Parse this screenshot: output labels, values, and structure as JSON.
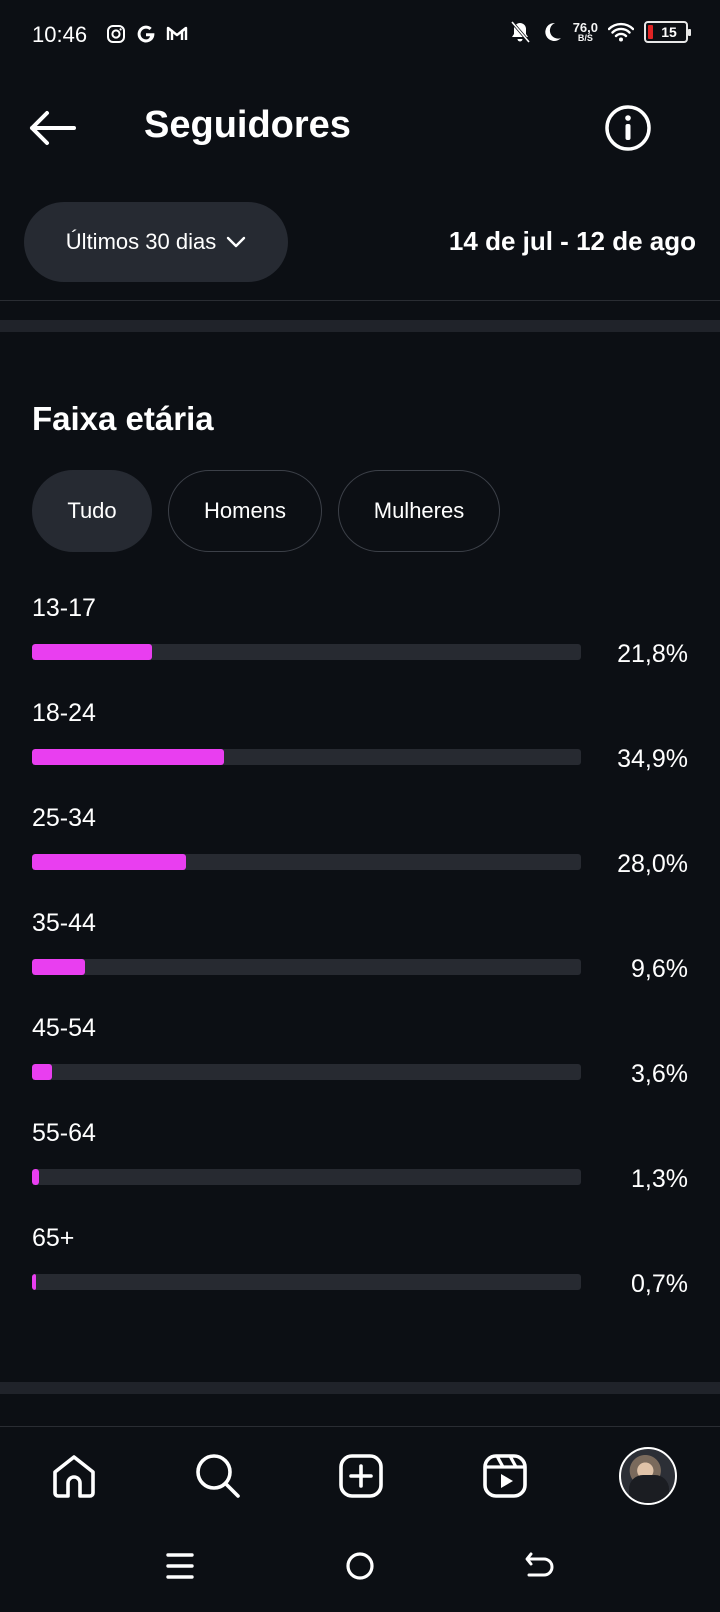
{
  "status_bar": {
    "time": "10:46",
    "app_icons": [
      "instagram-icon",
      "google-icon",
      "gmail-icon"
    ],
    "speed_value": "76,0",
    "speed_unit": "B/S",
    "battery_level": "15"
  },
  "header": {
    "title": "Seguidores"
  },
  "filter": {
    "period_label": "Últimos 30 dias",
    "date_range": "14 de jul - 12 de ago"
  },
  "age_section": {
    "title": "Faixa etária",
    "tabs": [
      "Tudo",
      "Homens",
      "Mulheres"
    ],
    "active_tab": "Tudo",
    "bar_color": "#e93ef0",
    "rows": [
      {
        "label": "13-17",
        "percent": "21,8%",
        "value": 21.8
      },
      {
        "label": "18-24",
        "percent": "34,9%",
        "value": 34.9
      },
      {
        "label": "25-34",
        "percent": "28,0%",
        "value": 28.0
      },
      {
        "label": "35-44",
        "percent": "9,6%",
        "value": 9.6
      },
      {
        "label": "45-54",
        "percent": "3,6%",
        "value": 3.6
      },
      {
        "label": "55-64",
        "percent": "1,3%",
        "value": 1.3
      },
      {
        "label": "65+",
        "percent": "0,7%",
        "value": 0.7
      }
    ]
  },
  "bottom_nav": {
    "items": [
      "home-icon",
      "search-icon",
      "create-icon",
      "reels-icon",
      "profile-avatar"
    ]
  },
  "system_nav": {
    "items": [
      "recents-icon",
      "home-circle-icon",
      "back-icon"
    ]
  }
}
